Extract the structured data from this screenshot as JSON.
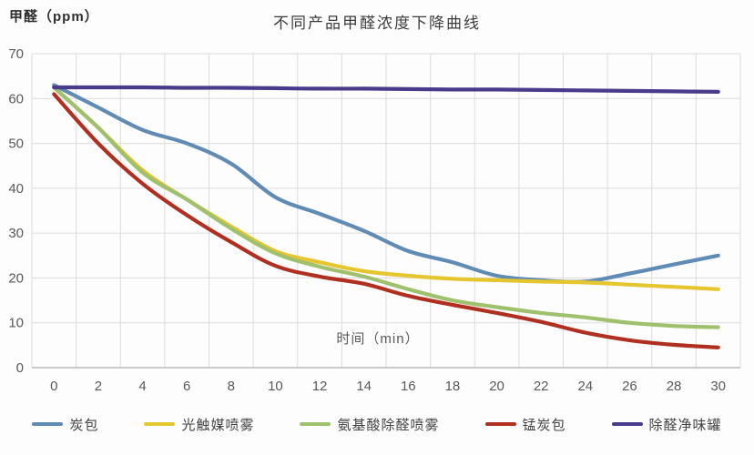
{
  "chart_data": {
    "type": "line",
    "title": "不同产品甲醛浓度下降曲线",
    "ylabel": "甲醛（ppm）",
    "xlabel": "时间（min）",
    "grid": true,
    "legend_position": "bottom",
    "ylim": [
      0,
      70
    ],
    "yticks": [
      0,
      10,
      20,
      30,
      40,
      50,
      60,
      70
    ],
    "x": [
      0,
      2,
      4,
      6,
      8,
      10,
      12,
      14,
      16,
      18,
      20,
      22,
      24,
      26,
      28,
      30
    ],
    "series": [
      {
        "name": "炭包",
        "color": "#5f8bb4",
        "values": [
          63,
          58,
          53,
          50,
          45.5,
          38,
          34.3,
          30.5,
          26,
          23.5,
          20.5,
          19.5,
          19.2,
          21,
          23,
          25
        ]
      },
      {
        "name": "光触媒喷雾",
        "color": "#e6c62e",
        "values": [
          62.5,
          53.5,
          44,
          37.5,
          31.5,
          26,
          23.5,
          21.5,
          20.5,
          19.8,
          19.5,
          19.2,
          19,
          18.5,
          18,
          17.5
        ]
      },
      {
        "name": "氨基酸除醛喷雾",
        "color": "#9fc06c",
        "values": [
          62.5,
          53.5,
          43.5,
          37.5,
          31,
          25.5,
          22.5,
          20.3,
          17.5,
          15,
          13.5,
          12.2,
          11.2,
          10,
          9.3,
          9
        ]
      },
      {
        "name": "锰炭包",
        "color": "#b02f20",
        "values": [
          61,
          50,
          41,
          34,
          28,
          22.7,
          20.3,
          18.7,
          16,
          14,
          12.2,
          10.2,
          7.8,
          6.1,
          5.1,
          4.5
        ]
      },
      {
        "name": "除醛净味罐",
        "color": "#4a3a8c",
        "values": [
          62.5,
          62.5,
          62.5,
          62.4,
          62.4,
          62.3,
          62.2,
          62.2,
          62.1,
          62,
          62,
          61.9,
          61.8,
          61.7,
          61.6,
          61.5
        ]
      }
    ]
  }
}
